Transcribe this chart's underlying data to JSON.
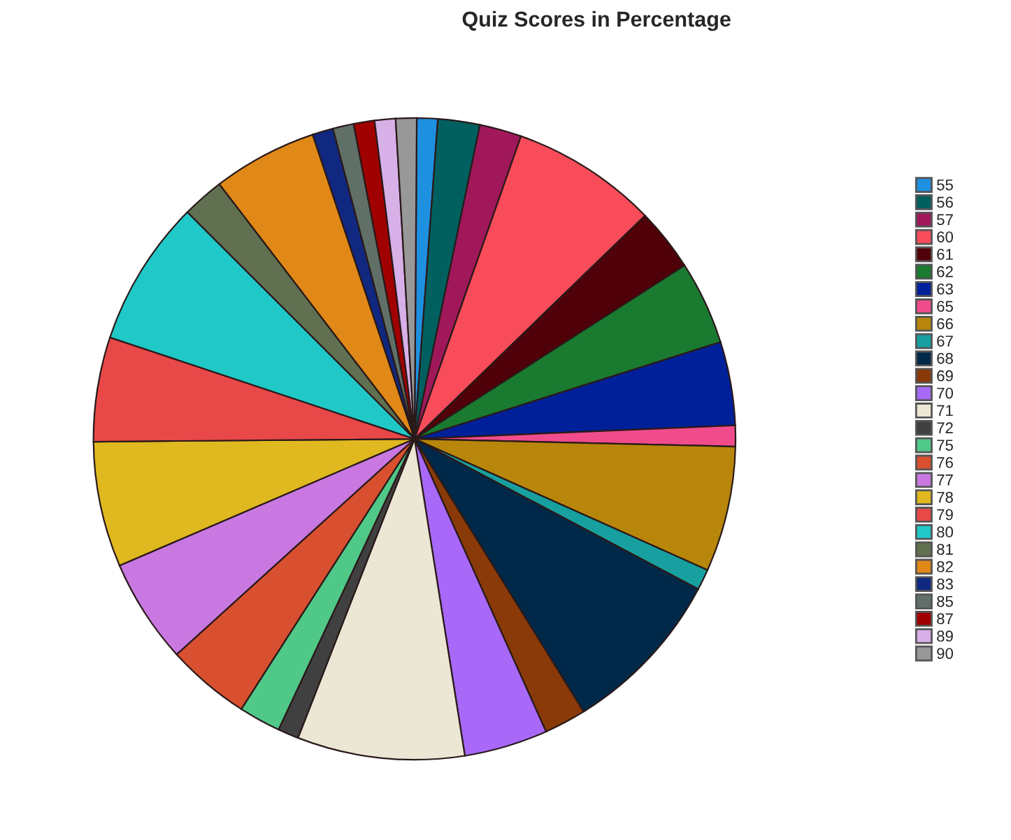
{
  "chart_data": {
    "type": "pie",
    "title": "Quiz Scores in Percentage",
    "categories": [
      "55",
      "56",
      "57",
      "60",
      "61",
      "62",
      "63",
      "65",
      "66",
      "67",
      "68",
      "69",
      "70",
      "71",
      "72",
      "75",
      "76",
      "77",
      "78",
      "79",
      "80",
      "81",
      "82",
      "83",
      "85",
      "87",
      "89",
      "90"
    ],
    "values": [
      1.05,
      2.11,
      2.11,
      7.37,
      3.16,
      4.21,
      4.21,
      1.05,
      6.32,
      1.05,
      8.42,
      2.11,
      4.21,
      8.42,
      1.05,
      2.11,
      4.21,
      5.26,
      6.32,
      5.26,
      7.37,
      2.11,
      5.26,
      1.05,
      1.05,
      1.05,
      1.05,
      1.05
    ],
    "colors": [
      "#1e90e0",
      "#006060",
      "#a0185a",
      "#f84c5a",
      "#500008",
      "#1a7a30",
      "#00209a",
      "#f04c8c",
      "#b8860a",
      "#18a0a0",
      "#002848",
      "#8a3a08",
      "#a868f8",
      "#ece6d4",
      "#404040",
      "#50c888",
      "#d85030",
      "#c878e0",
      "#e0b820",
      "#e84848",
      "#20c8c8",
      "#607050",
      "#e08818",
      "#102880",
      "#607068",
      "#a00000",
      "#d8b0e8",
      "#989898"
    ],
    "legend": "right"
  }
}
